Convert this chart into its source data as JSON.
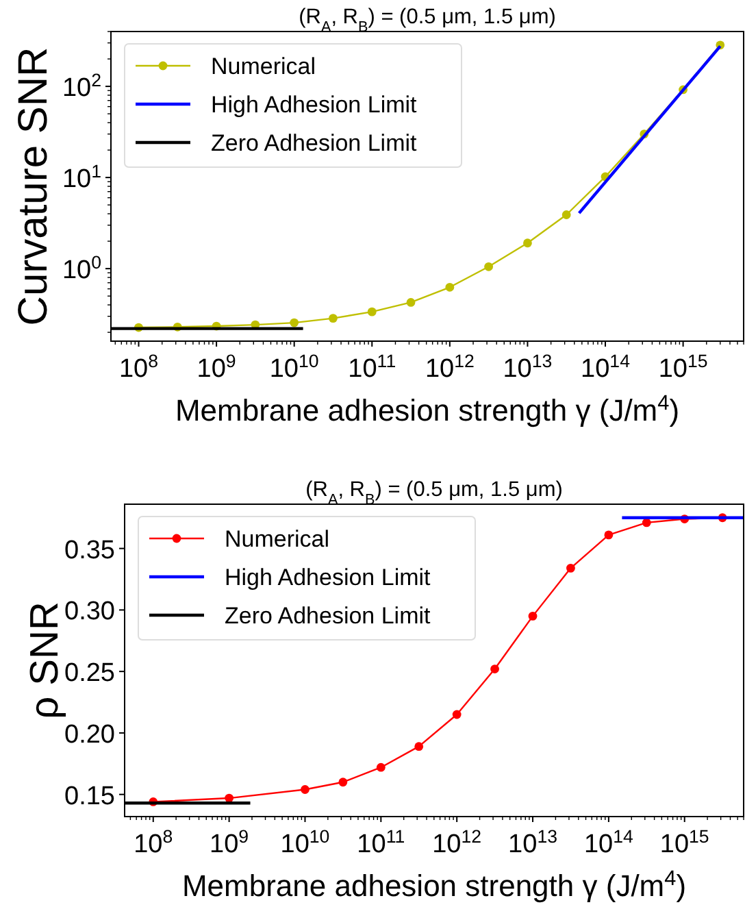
{
  "chart_data": [
    {
      "type": "line",
      "title": "(R$_{A}$, R$_{B}$) = (0.5 μm, 1.5 μm)",
      "xlabel": "Membrane adhesion strength γ (J/m$^{4}$)",
      "ylabel": "Curvature SNR",
      "log": "xy",
      "legend": "top left",
      "xlim": [
        44000000,
        6000000000000000
      ],
      "ylim": [
        0.16,
        400
      ],
      "xticks": [
        {
          "value": 100000000.0,
          "label": "10$^{8}$"
        },
        {
          "value": 1000000000.0,
          "label": "10$^{9}$"
        },
        {
          "value": 10000000000.0,
          "label": "10$^{10}$"
        },
        {
          "value": 100000000000.0,
          "label": "10$^{11}$"
        },
        {
          "value": 1000000000000.0,
          "label": "10$^{12}$"
        },
        {
          "value": 10000000000000.0,
          "label": "10$^{13}$"
        },
        {
          "value": 100000000000000.0,
          "label": "10$^{14}$"
        },
        {
          "value": 1000000000000000.0,
          "label": "10$^{15}$"
        }
      ],
      "yticks": [
        {
          "value": 1,
          "label": "10$^{0}$"
        },
        {
          "value": 10,
          "label": "10$^{1}$"
        },
        {
          "value": 100,
          "label": "10$^{2}$"
        }
      ],
      "series": [
        {
          "name": "Numerical",
          "color": "#bfbf00",
          "marker": "circle",
          "x": [
            100000000.0,
            316000000.0,
            1000000000.0,
            3160000000.0,
            10000000000.0,
            31600000000.0,
            100000000000.0,
            316000000000.0,
            1000000000000.0,
            3160000000000.0,
            10000000000000.0,
            31600000000000.0,
            100000000000000.0,
            316000000000000.0,
            1000000000000000.0,
            3000000000000000.0
          ],
          "values": [
            0.226,
            0.229,
            0.234,
            0.242,
            0.255,
            0.285,
            0.336,
            0.426,
            0.625,
            1.05,
            1.91,
            3.9,
            10.2,
            30,
            92,
            284
          ]
        },
        {
          "name": "High Adhesion Limit",
          "color": "#0000ff",
          "marker": "none",
          "x": [
            46000000000000.0,
            3000000000000000.0
          ],
          "values": [
            4.06,
            276
          ]
        },
        {
          "name": "Zero Adhesion Limit",
          "color": "#000000",
          "marker": "none",
          "x": [
            44000000,
            13000000000.0
          ],
          "values": [
            0.22,
            0.22
          ]
        }
      ]
    },
    {
      "type": "line",
      "title": "(R$_{A}$, R$_{B}$) = (0.5 μm, 1.5 μm)",
      "xlabel": "Membrane adhesion strength γ (J/m$^{4}$)",
      "ylabel": "ρ SNR",
      "log": "x",
      "legend": "top left",
      "xlim": [
        42000000,
        6000000000000000
      ],
      "ylim": [
        0.132,
        0.386
      ],
      "xticks": [
        {
          "value": 100000000.0,
          "label": "10$^{8}$"
        },
        {
          "value": 1000000000.0,
          "label": "10$^{9}$"
        },
        {
          "value": 10000000000.0,
          "label": "10$^{10}$"
        },
        {
          "value": 100000000000.0,
          "label": "10$^{11}$"
        },
        {
          "value": 1000000000000.0,
          "label": "10$^{12}$"
        },
        {
          "value": 10000000000000.0,
          "label": "10$^{13}$"
        },
        {
          "value": 100000000000000.0,
          "label": "10$^{14}$"
        },
        {
          "value": 1000000000000000.0,
          "label": "10$^{15}$"
        }
      ],
      "yticks": [
        0.15,
        {
          "value": 0.2,
          "label": "0.20"
        },
        0.25,
        {
          "value": 0.3,
          "label": "0.30"
        },
        0.35
      ],
      "series": [
        {
          "name": "Numerical",
          "color": "#ff0000",
          "marker": "circle",
          "x": [
            100000000.0,
            1000000000.0,
            10000000000.0,
            31600000000.0,
            100000000000.0,
            316000000000.0,
            1000000000000.0,
            3160000000000.0,
            10000000000000.0,
            31600000000000.0,
            100000000000000.0,
            316000000000000.0,
            1000000000000000.0,
            3160000000000000.0
          ],
          "values": [
            0.144,
            0.147,
            0.154,
            0.16,
            0.172,
            0.189,
            0.215,
            0.252,
            0.295,
            0.334,
            0.361,
            0.371,
            0.374,
            0.375
          ]
        },
        {
          "name": "High Adhesion Limit",
          "color": "#0000ff",
          "marker": "none",
          "x": [
            150000000000000.0,
            6000000000000000
          ],
          "values": [
            0.375,
            0.375
          ]
        },
        {
          "name": "Zero Adhesion Limit",
          "color": "#000000",
          "marker": "none",
          "x": [
            42000000,
            1900000000.0
          ],
          "values": [
            0.143,
            0.143
          ]
        }
      ]
    }
  ]
}
